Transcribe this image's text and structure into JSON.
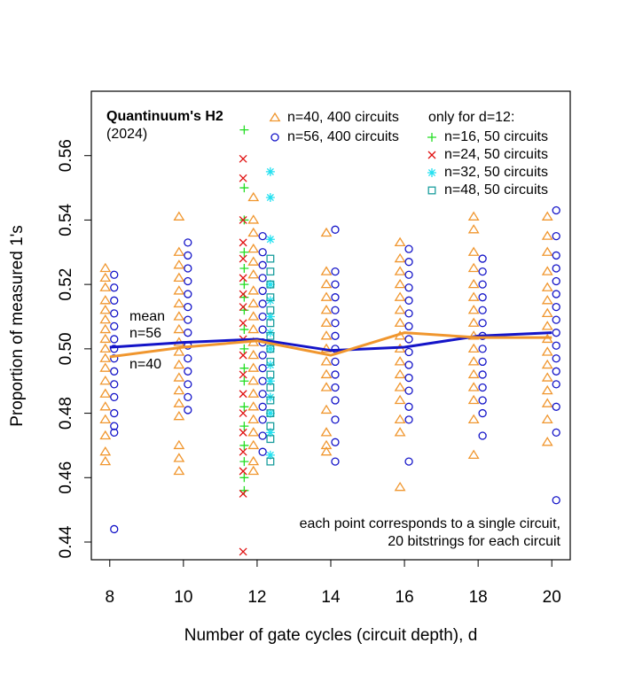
{
  "chart_data": {
    "type": "scatter",
    "title": "Quantinuum's H2",
    "subtitle": "(2024)",
    "x_label": "Number of gate cycles (circuit depth), d",
    "y_label": "Proportion of measured 1's",
    "legend_heading": "only for d=12:",
    "mean_label": "mean",
    "note": [
      "each point corresponds to a single circuit,",
      "20 bitstrings for each circuit"
    ],
    "xlim": [
      7.5,
      20.5
    ],
    "ylim": [
      0.4345,
      0.58
    ],
    "xticks": [
      8,
      10,
      12,
      14,
      16,
      18,
      20
    ],
    "yticks": [
      {
        "value": 0.44,
        "label": "0.44"
      },
      {
        "value": 0.46,
        "label": "0.46"
      },
      {
        "value": 0.48,
        "label": "0.48"
      },
      {
        "value": 0.5,
        "label": "0.50"
      },
      {
        "value": 0.52,
        "label": "0.52"
      },
      {
        "value": 0.54,
        "label": "0.54"
      },
      {
        "value": 0.56,
        "label": "0.56"
      }
    ],
    "series": [
      {
        "name": "n=40, 400 circuits",
        "color": "#f0962e",
        "marker": "triangle",
        "groups": [
          {
            "x": 7.88,
            "values": [
              0.525,
              0.522,
              0.519,
              0.515,
              0.512,
              0.509,
              0.506,
              0.503,
              0.5,
              0.497,
              0.494,
              0.49,
              0.486,
              0.482,
              0.478,
              0.473,
              0.468,
              0.465
            ]
          },
          {
            "x": 9.88,
            "values": [
              0.541,
              0.53,
              0.526,
              0.522,
              0.518,
              0.514,
              0.51,
              0.506,
              0.502,
              0.499,
              0.495,
              0.491,
              0.487,
              0.483,
              0.479,
              0.47,
              0.466,
              0.462
            ]
          },
          {
            "x": 11.9,
            "values": [
              0.547,
              0.54,
              0.536,
              0.531,
              0.527,
              0.523,
              0.518,
              0.514,
              0.51,
              0.506,
              0.502,
              0.498,
              0.494,
              0.49,
              0.486,
              0.482,
              0.478,
              0.474,
              0.47,
              0.465,
              0.462
            ]
          },
          {
            "x": 13.88,
            "values": [
              0.536,
              0.524,
              0.52,
              0.516,
              0.512,
              0.508,
              0.504,
              0.5,
              0.496,
              0.492,
              0.488,
              0.481,
              0.474,
              0.47,
              0.468
            ]
          },
          {
            "x": 15.88,
            "values": [
              0.533,
              0.528,
              0.524,
              0.52,
              0.516,
              0.512,
              0.508,
              0.504,
              0.5,
              0.496,
              0.492,
              0.488,
              0.484,
              0.478,
              0.474,
              0.457
            ]
          },
          {
            "x": 17.88,
            "values": [
              0.541,
              0.537,
              0.53,
              0.525,
              0.52,
              0.516,
              0.512,
              0.508,
              0.504,
              0.5,
              0.496,
              0.492,
              0.488,
              0.484,
              0.478,
              0.467
            ]
          },
          {
            "x": 19.88,
            "values": [
              0.541,
              0.535,
              0.53,
              0.524,
              0.519,
              0.515,
              0.511,
              0.507,
              0.503,
              0.499,
              0.495,
              0.491,
              0.487,
              0.483,
              0.478,
              0.471
            ]
          }
        ]
      },
      {
        "name": "n=56, 400 circuits",
        "color": "#1414c8",
        "marker": "circle",
        "groups": [
          {
            "x": 8.12,
            "values": [
              0.523,
              0.519,
              0.515,
              0.511,
              0.507,
              0.503,
              0.5,
              0.497,
              0.493,
              0.489,
              0.485,
              0.48,
              0.476,
              0.474,
              0.444
            ]
          },
          {
            "x": 10.12,
            "values": [
              0.533,
              0.529,
              0.525,
              0.521,
              0.517,
              0.513,
              0.509,
              0.505,
              0.501,
              0.497,
              0.493,
              0.489,
              0.485,
              0.481
            ]
          },
          {
            "x": 12.15,
            "values": [
              0.535,
              0.53,
              0.526,
              0.522,
              0.518,
              0.514,
              0.51,
              0.506,
              0.502,
              0.498,
              0.494,
              0.49,
              0.486,
              0.482,
              0.478,
              0.473,
              0.468
            ]
          },
          {
            "x": 14.12,
            "values": [
              0.537,
              0.524,
              0.52,
              0.516,
              0.512,
              0.508,
              0.504,
              0.5,
              0.496,
              0.492,
              0.488,
              0.484,
              0.478,
              0.471,
              0.465
            ]
          },
          {
            "x": 16.12,
            "values": [
              0.531,
              0.527,
              0.523,
              0.519,
              0.515,
              0.511,
              0.507,
              0.503,
              0.499,
              0.495,
              0.491,
              0.487,
              0.482,
              0.478,
              0.465
            ]
          },
          {
            "x": 18.12,
            "values": [
              0.528,
              0.524,
              0.52,
              0.516,
              0.512,
              0.508,
              0.504,
              0.5,
              0.496,
              0.492,
              0.488,
              0.484,
              0.48,
              0.473
            ]
          },
          {
            "x": 20.12,
            "values": [
              0.543,
              0.535,
              0.529,
              0.525,
              0.521,
              0.517,
              0.513,
              0.509,
              0.505,
              0.501,
              0.497,
              0.493,
              0.489,
              0.482,
              0.474,
              0.453
            ]
          }
        ]
      },
      {
        "name": "n=16, 50 circuits",
        "color": "#22dd22",
        "marker": "plus",
        "groups": [
          {
            "x": 11.65,
            "values": [
              0.568,
              0.55,
              0.54,
              0.53,
              0.525,
              0.52,
              0.516,
              0.512,
              0.506,
              0.5,
              0.494,
              0.49,
              0.482,
              0.476,
              0.47,
              0.465,
              0.46,
              0.456
            ]
          }
        ]
      },
      {
        "name": "n=24, 50 circuits",
        "color": "#e01010",
        "marker": "cross",
        "groups": [
          {
            "x": 11.62,
            "values": [
              0.559,
              0.553,
              0.54,
              0.533,
              0.528,
              0.522,
              0.517,
              0.513,
              0.508,
              0.503,
              0.498,
              0.492,
              0.486,
              0.48,
              0.474,
              0.468,
              0.462,
              0.455,
              0.437
            ]
          }
        ]
      },
      {
        "name": "n=32, 50 circuits",
        "color": "#22e0f0",
        "marker": "asterisk",
        "groups": [
          {
            "x": 12.36,
            "values": [
              0.555,
              0.547,
              0.534,
              0.52,
              0.515,
              0.51,
              0.505,
              0.5,
              0.495,
              0.49,
              0.485,
              0.48,
              0.474,
              0.467
            ]
          }
        ]
      },
      {
        "name": "n=48, 50 circuits",
        "color": "#1a9e9e",
        "marker": "square",
        "groups": [
          {
            "x": 12.36,
            "values": [
              0.528,
              0.524,
              0.52,
              0.516,
              0.512,
              0.508,
              0.504,
              0.5,
              0.496,
              0.492,
              0.488,
              0.484,
              0.48,
              0.476,
              0.472,
              0.465
            ]
          }
        ]
      }
    ],
    "means": [
      {
        "name": "n=56",
        "color": "#1414c8",
        "x": [
          8,
          10,
          12,
          14,
          16,
          18,
          20
        ],
        "values": [
          0.5005,
          0.502,
          0.503,
          0.4995,
          0.5005,
          0.504,
          0.505
        ]
      },
      {
        "name": "n=40",
        "color": "#f0962e",
        "x": [
          8,
          10,
          12,
          14,
          16,
          18,
          20
        ],
        "values": [
          0.4975,
          0.5005,
          0.5025,
          0.498,
          0.505,
          0.5035,
          0.5035
        ]
      }
    ]
  }
}
